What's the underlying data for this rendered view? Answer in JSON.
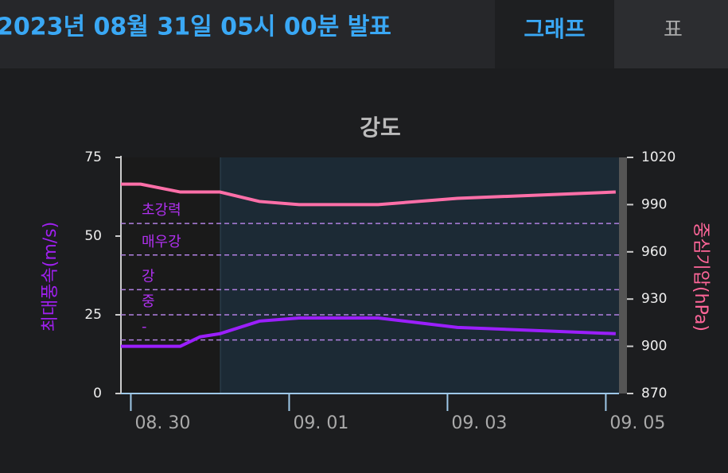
{
  "header": {
    "title": "2023년 08월 31일 05시 00분 발표",
    "tabs": [
      "그래프",
      "표"
    ]
  },
  "chart_data": {
    "type": "line",
    "title": "강도",
    "y_label": "최대풍속(m/s)",
    "y2_label": "중심기압(hPa)",
    "x": [
      -3,
      3,
      15,
      21,
      27,
      39,
      51,
      75,
      99,
      147
    ],
    "xlim": [
      -3,
      148
    ],
    "xticks": [
      {
        "value": 0,
        "label": "08. 30"
      },
      {
        "value": 48,
        "label": "09. 01"
      },
      {
        "value": 96,
        "label": "09. 03"
      },
      {
        "value": 144,
        "label": "09. 05"
      }
    ],
    "ylim": [
      0,
      75
    ],
    "yticks": [
      0,
      25,
      50,
      75
    ],
    "y2lim": [
      870,
      1020
    ],
    "y2ticks": [
      870,
      900,
      930,
      960,
      990,
      1020
    ],
    "series": [
      {
        "name": "최대풍속",
        "color": "#9b1fff",
        "values": [
          15,
          15,
          15,
          18,
          19,
          23,
          24,
          24,
          21,
          19
        ]
      },
      {
        "name": "중심기압",
        "color": "#ff6fa8",
        "axis": "y2",
        "values": [
          1003,
          1003,
          998,
          998,
          998,
          992,
          990,
          990,
          994,
          998
        ]
      }
    ],
    "bands": [
      {
        "label": "초강력",
        "value": 54
      },
      {
        "label": "매우강",
        "value": 44
      },
      {
        "label": "강",
        "value": 33
      },
      {
        "label": "중",
        "value": 25
      },
      {
        "label": "-",
        "value": 17
      }
    ],
    "band_color": "#b080e0"
  }
}
